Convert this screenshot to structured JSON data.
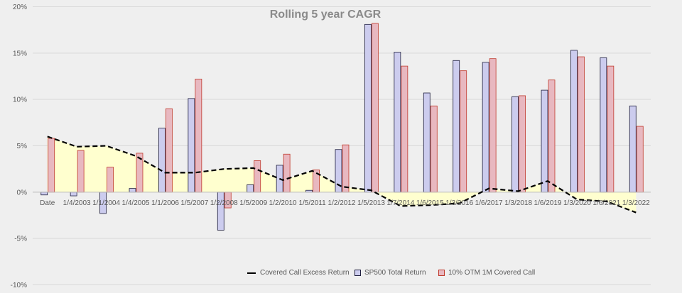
{
  "chart_data": {
    "type": "bar",
    "title": "Rolling 5 year CAGR",
    "ylim": [
      -10,
      20
    ],
    "yticks": [
      "-10%",
      "-5%",
      "0%",
      "5%",
      "10%",
      "15%",
      "20%"
    ],
    "ytick_values": [
      -10,
      -5,
      0,
      5,
      10,
      15,
      20
    ],
    "grid": "horizontal",
    "legend_position": "bottom",
    "categories": [
      "Date",
      "1/4/2003",
      "1/1/2004",
      "1/4/2005",
      "1/1/2006",
      "1/5/2007",
      "1/2/2008",
      "1/5/2009",
      "1/2/2010",
      "1/5/2011",
      "1/2/2012",
      "1/5/2013",
      "1/7/2014",
      "1/6/2015",
      "1/3/2016",
      "1/6/2017",
      "1/3/2018",
      "1/6/2019",
      "1/3/2020",
      "1/6/2021",
      "1/3/2022"
    ],
    "series": [
      {
        "name": "Covered Call Excess Return",
        "type": "area-line",
        "color": "#000000",
        "fill": "#ffffcc",
        "values": [
          6.0,
          4.9,
          5.0,
          3.9,
          2.1,
          2.1,
          2.5,
          2.6,
          1.3,
          2.3,
          0.6,
          0.2,
          -1.5,
          -1.4,
          -1.2,
          0.4,
          0.1,
          1.2,
          -0.8,
          -1.0,
          -2.2
        ]
      },
      {
        "name": "SP500 Total Return",
        "type": "bar",
        "color": "#ccccee",
        "stroke": "#1f1f3f",
        "values": [
          -0.3,
          -0.4,
          -2.3,
          0.4,
          6.9,
          10.1,
          -4.1,
          0.8,
          2.9,
          0.2,
          4.6,
          18.1,
          15.1,
          10.7,
          14.2,
          14.0,
          10.3,
          11.0,
          15.3,
          14.5,
          9.3
        ]
      },
      {
        "name": "10% OTM 1M Covered Call",
        "type": "bar",
        "color": "#e8b8c0",
        "stroke": "#c0392b",
        "values": [
          5.8,
          4.5,
          2.7,
          4.2,
          9.0,
          12.2,
          -1.7,
          3.4,
          4.1,
          2.4,
          5.1,
          18.2,
          13.6,
          9.3,
          13.1,
          14.4,
          10.4,
          12.1,
          14.6,
          13.6,
          7.1
        ]
      }
    ]
  }
}
